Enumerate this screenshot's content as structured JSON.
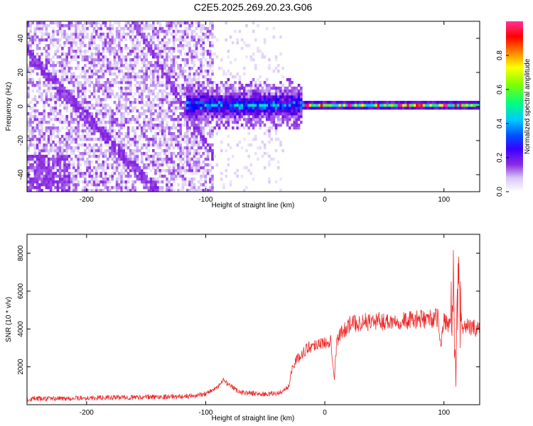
{
  "title": "C2E5.2025.269.20.23.G06",
  "chart_data": [
    {
      "type": "heatmap",
      "xlabel": "Height of straight line (km)",
      "ylabel": "Frequency (Hz)",
      "xlim": [
        -250,
        130
      ],
      "ylim": [
        -50,
        50
      ],
      "xticks": [
        -200,
        -100,
        0,
        100
      ],
      "xtick_labels": [
        "-200",
        "-100",
        "0",
        "100"
      ],
      "yticks": [
        -40,
        -20,
        0,
        20,
        40
      ],
      "ytick_labels": [
        "-40",
        "-20",
        "0",
        "20",
        "40"
      ],
      "colorbar": {
        "label": "Normalized spectral amplitude",
        "range": [
          0,
          1
        ],
        "ticks": [
          0.0,
          0.2,
          0.4,
          0.6,
          0.8
        ],
        "tick_labels": [
          "0.0",
          "0.2",
          "0.4",
          "0.6",
          "0.8"
        ],
        "colormap": [
          "#ffffff",
          "#d9c8f5",
          "#8a2be2",
          "#5a00e0",
          "#0000ff",
          "#00c8ff",
          "#00ff80",
          "#80ff00",
          "#ffff00",
          "#ff8000",
          "#ff0000",
          "#ff3399"
        ]
      },
      "features": {
        "noise_region_km": [
          -250,
          -95
        ],
        "sparse_region_km": [
          -95,
          -35
        ],
        "carrier_onset_km": -118,
        "carrier_strong_from_km": -20,
        "carrier_frequency_hz": 0
      }
    },
    {
      "type": "line",
      "xlabel": "Height of straight line (km)",
      "ylabel": "SNR (10 * v/v)",
      "xlim": [
        -250,
        130
      ],
      "ylim": [
        0,
        9000
      ],
      "xticks": [
        -200,
        -100,
        0,
        100
      ],
      "xtick_labels": [
        "-200",
        "-100",
        "0",
        "100"
      ],
      "yticks": [
        2000,
        4000,
        6000,
        8000
      ],
      "ytick_labels": [
        "2000",
        "4000",
        "6000",
        "8000"
      ],
      "color": "#ee2a2a",
      "series": [
        {
          "x": [
            -250,
            -200,
            -150,
            -110,
            -100,
            -90,
            -85,
            -80,
            -75,
            -70,
            -60,
            -50,
            -40,
            -35,
            -30,
            -28,
            -25,
            -20,
            -15,
            -10,
            -5,
            0,
            5,
            8,
            10,
            15,
            20,
            25,
            30,
            40,
            50,
            60,
            70,
            80,
            90,
            95,
            97,
            100,
            105,
            108,
            110,
            112,
            115,
            120,
            130
          ],
          "y": [
            300,
            350,
            400,
            450,
            600,
            900,
            1300,
            1000,
            800,
            650,
            600,
            550,
            600,
            700,
            1000,
            1800,
            2300,
            2600,
            3000,
            3100,
            3300,
            3200,
            3500,
            1400,
            3400,
            3900,
            4200,
            4300,
            4350,
            4400,
            4400,
            4450,
            4450,
            4500,
            4550,
            4600,
            3000,
            4500,
            4200,
            5500,
            1000,
            6500,
            4200,
            4100,
            4000
          ]
        }
      ]
    }
  ]
}
